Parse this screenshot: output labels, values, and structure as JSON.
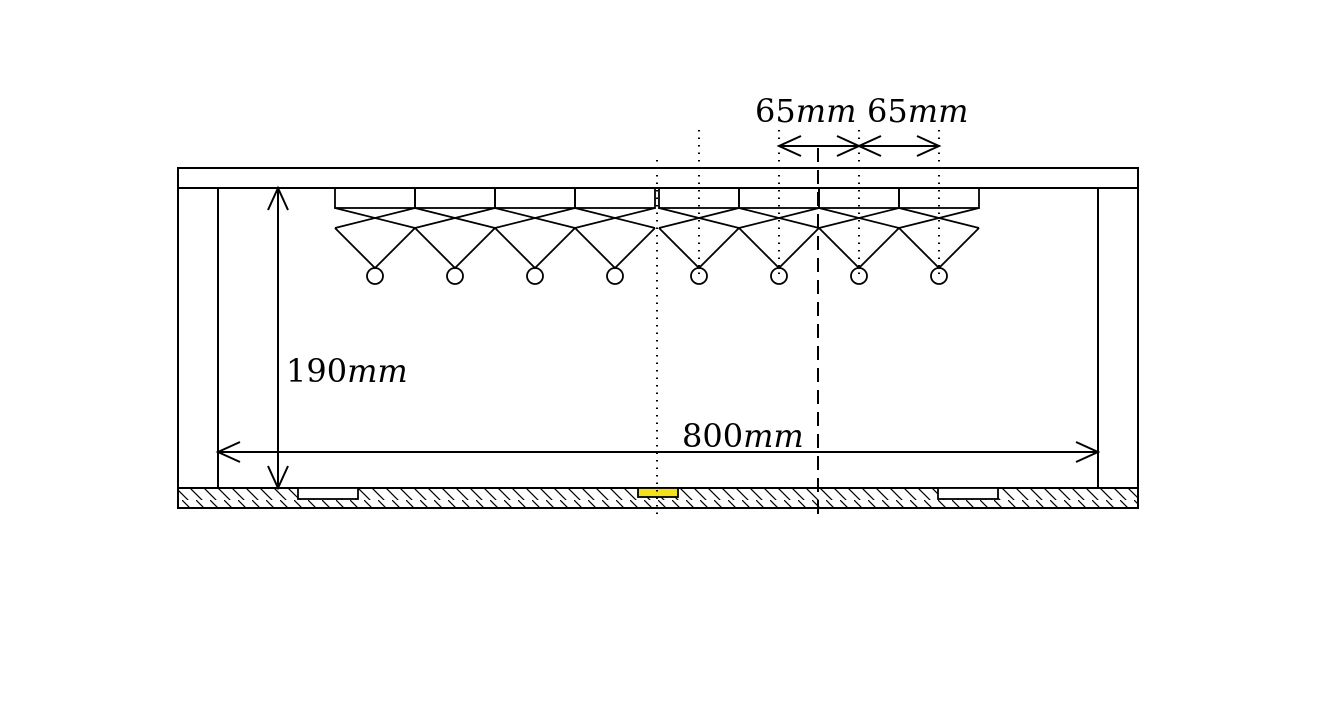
{
  "dimensions": {
    "spacing_left": {
      "value": "65",
      "unit": "mm"
    },
    "spacing_right": {
      "value": "65",
      "unit": "mm"
    },
    "height": {
      "value": "190",
      "unit": "mm"
    },
    "width": {
      "value": "800",
      "unit": "mm"
    }
  },
  "elements": {
    "element_count": 8
  },
  "colors": {
    "line": "#000000",
    "highlight_pad": "#f2e11b",
    "background": "#ffffff"
  }
}
